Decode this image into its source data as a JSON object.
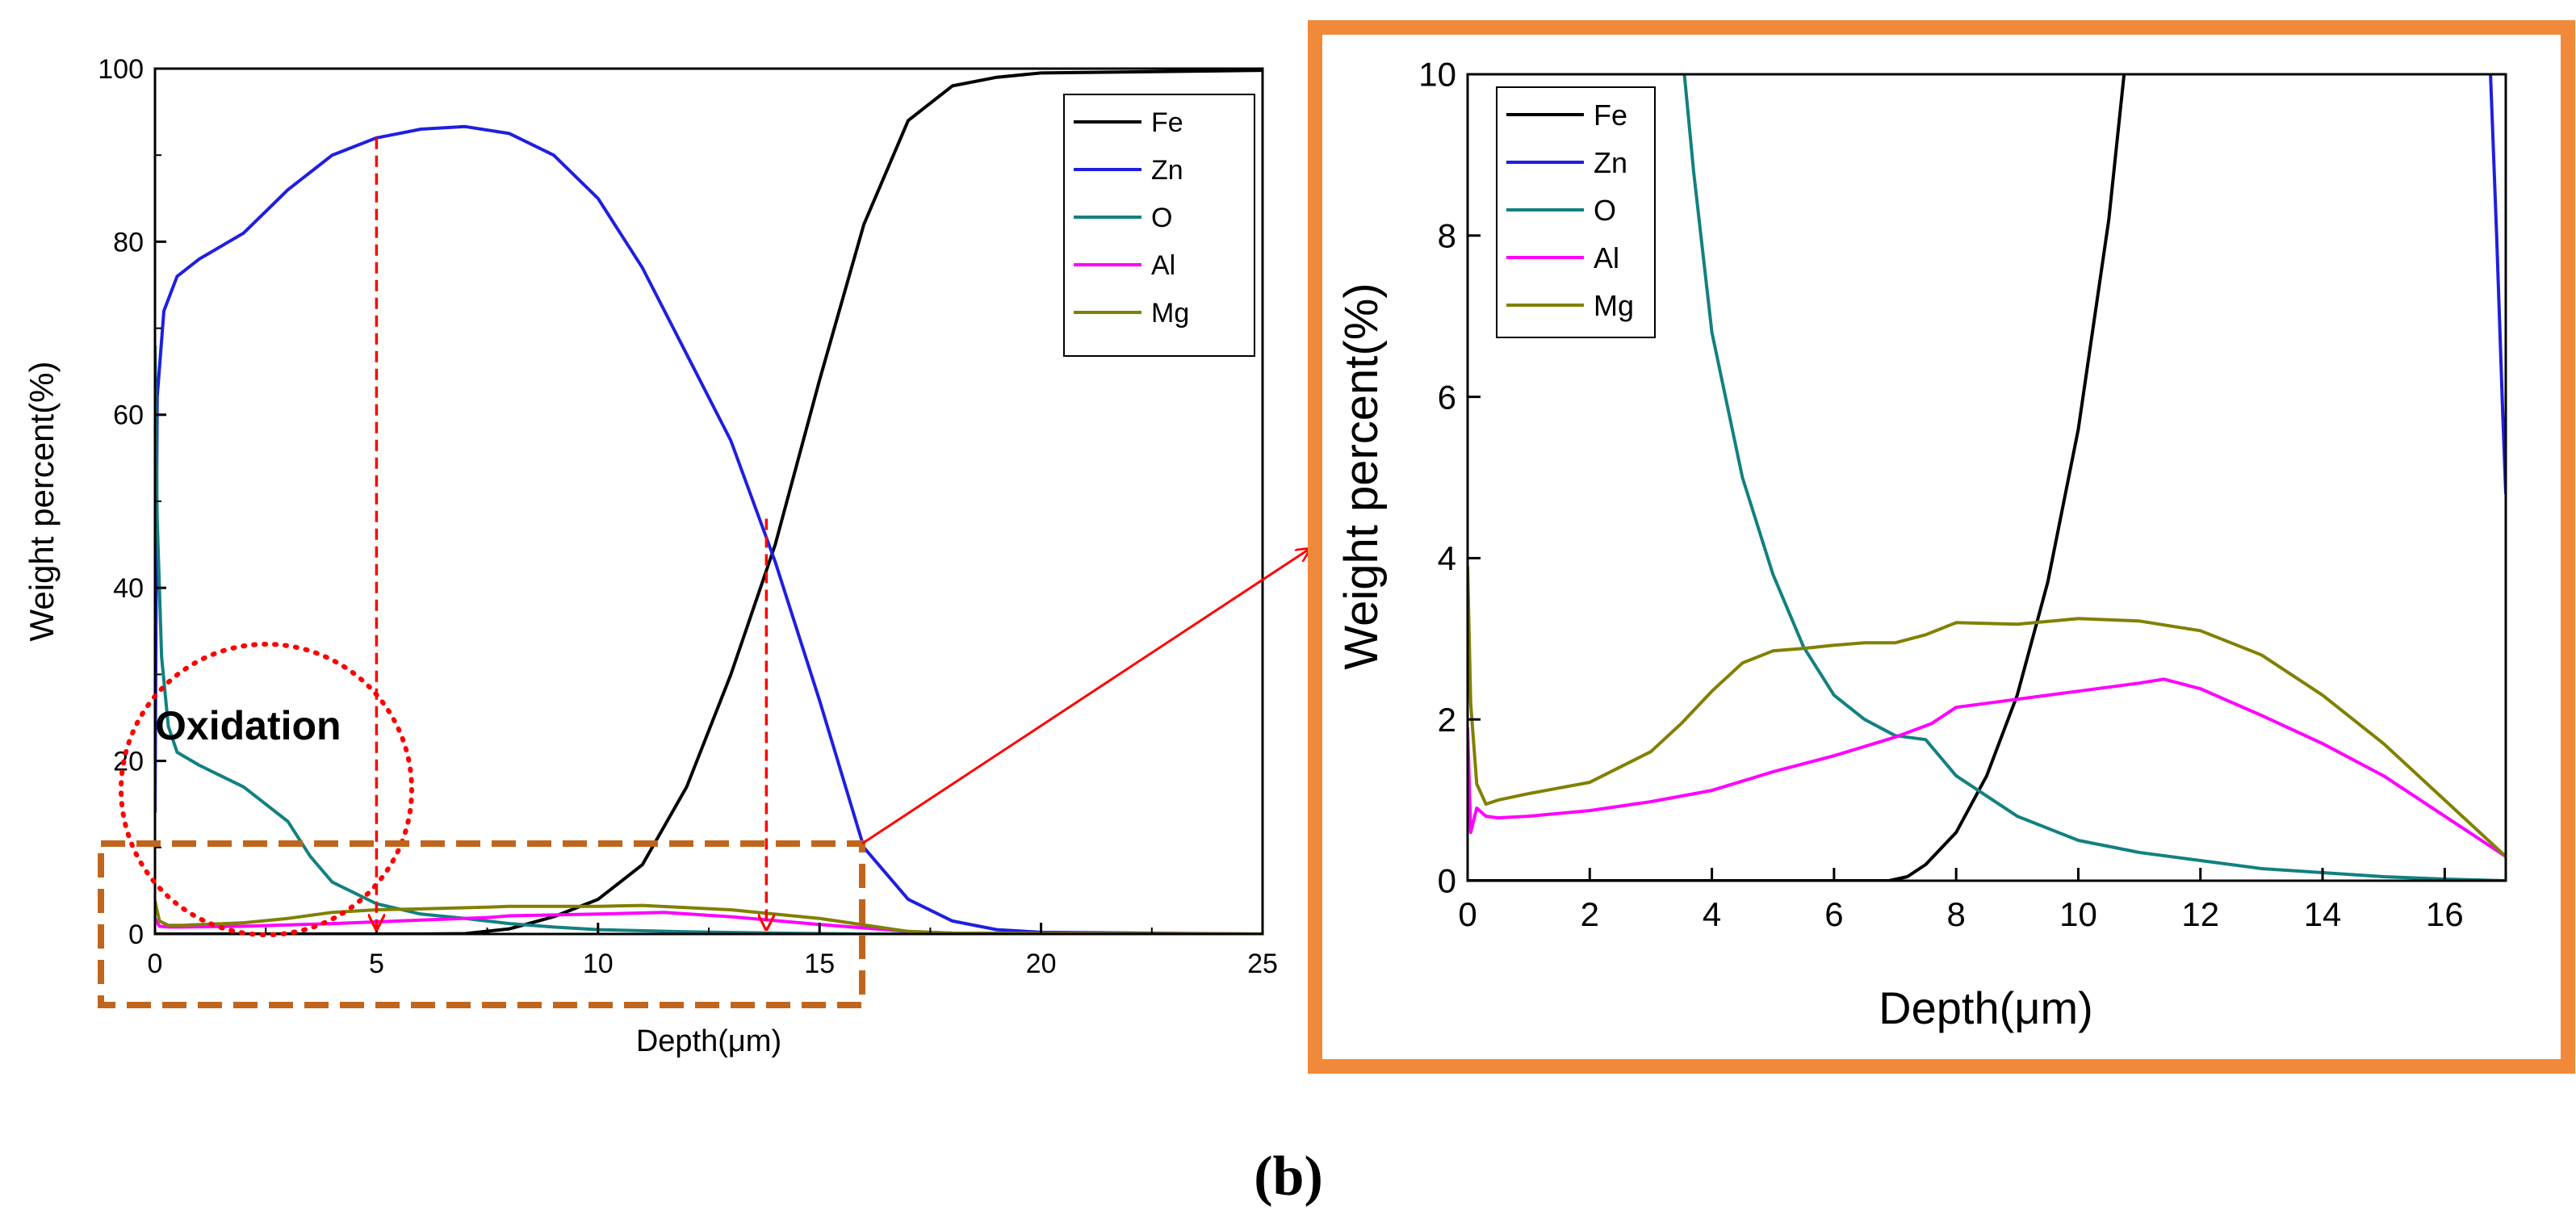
{
  "figure_label": "(b)",
  "annotation": {
    "oxidation_label": "Oxidation"
  },
  "series_colors": {
    "Fe": "#000000",
    "Zn": "#1f1fe0",
    "O": "#128080",
    "Al": "#ff00ff",
    "Mg": "#808000"
  },
  "highlight_colors": {
    "inset_frame": "#f08a3a",
    "zoom_box": "#c0651e",
    "markers": "#ff0000"
  },
  "chart_data": [
    {
      "id": "main",
      "type": "line",
      "title": "",
      "xlabel": "Depth(μm)",
      "ylabel": "Weight percent(%)",
      "xlim": [
        0,
        25
      ],
      "ylim": [
        0,
        100
      ],
      "xticks": [
        0,
        5,
        10,
        15,
        20,
        25
      ],
      "yticks": [
        0,
        20,
        40,
        60,
        80,
        100
      ],
      "legend": [
        "Fe",
        "Zn",
        "O",
        "Al",
        "Mg"
      ],
      "legend_position": "top-right",
      "markers_at_depth": [
        5,
        13.8
      ],
      "series": [
        {
          "name": "Fe",
          "x": [
            0,
            6,
            7,
            8,
            9,
            10,
            11,
            12,
            13,
            14,
            15,
            16,
            17,
            18,
            19,
            20,
            25
          ],
          "y": [
            0,
            0,
            0.05,
            0.6,
            2,
            4,
            8,
            17,
            30,
            45,
            64,
            82,
            94,
            98,
            99,
            99.5,
            99.8
          ]
        },
        {
          "name": "Zn",
          "x": [
            0,
            0.05,
            0.2,
            0.5,
            1,
            2,
            3,
            4,
            5,
            6,
            7,
            8,
            9,
            10,
            11,
            12,
            13,
            14,
            15,
            16,
            17,
            18,
            19,
            20,
            25
          ],
          "y": [
            14,
            62,
            72,
            76,
            78,
            81,
            86,
            90,
            92,
            93,
            93.3,
            92.5,
            90,
            85,
            77,
            67,
            57,
            43,
            27,
            10,
            4,
            1.5,
            0.5,
            0.2,
            0
          ]
        },
        {
          "name": "O",
          "x": [
            0,
            0.05,
            0.15,
            0.3,
            0.5,
            1,
            2,
            3,
            3.5,
            4,
            5,
            6,
            7,
            8,
            9,
            10,
            12,
            14,
            16,
            25
          ],
          "y": [
            68,
            48,
            32,
            24,
            21,
            19.5,
            17,
            13,
            9,
            6,
            3.5,
            2.3,
            1.8,
            1.2,
            0.8,
            0.5,
            0.25,
            0.1,
            0,
            0
          ]
        },
        {
          "name": "Al",
          "x": [
            0,
            0.1,
            0.3,
            0.6,
            2,
            4,
            6,
            7.5,
            8,
            10,
            11.5,
            13,
            15,
            17,
            18,
            25
          ],
          "y": [
            1.8,
            0.9,
            0.8,
            0.8,
            0.9,
            1.2,
            1.6,
            1.9,
            2.1,
            2.3,
            2.5,
            2.0,
            1.1,
            0.3,
            0.1,
            0
          ]
        },
        {
          "name": "Mg",
          "x": [
            0,
            0.1,
            0.3,
            0.6,
            2,
            3,
            4,
            5,
            6,
            7.5,
            8,
            10,
            11,
            13,
            15,
            17,
            18,
            25
          ],
          "y": [
            3.8,
            1.5,
            1.0,
            1.0,
            1.3,
            1.8,
            2.5,
            2.8,
            2.9,
            3.1,
            3.2,
            3.2,
            3.3,
            2.8,
            1.8,
            0.3,
            0.1,
            0
          ]
        }
      ]
    },
    {
      "id": "inset",
      "type": "line",
      "title": "",
      "xlabel": "Depth(μm)",
      "ylabel": "Weight percent(%)",
      "xlim": [
        0,
        17
      ],
      "ylim": [
        0,
        10
      ],
      "xticks": [
        0,
        2,
        4,
        6,
        8,
        10,
        12,
        14,
        16
      ],
      "yticks": [
        0,
        2,
        4,
        6,
        8,
        10
      ],
      "legend": [
        "Fe",
        "Zn",
        "O",
        "Al",
        "Mg"
      ],
      "legend_position": "top-left",
      "series": [
        {
          "name": "Fe",
          "x": [
            0,
            6.9,
            7.2,
            7.5,
            8,
            8.5,
            9,
            9.5,
            10,
            10.5,
            10.75
          ],
          "y": [
            0,
            0,
            0.05,
            0.2,
            0.6,
            1.3,
            2.3,
            3.7,
            5.6,
            8.2,
            10
          ]
        },
        {
          "name": "Zn",
          "x": [
            16.75,
            16.85,
            16.95,
            17
          ],
          "y": [
            10,
            8,
            5.8,
            4.8
          ]
        },
        {
          "name": "O",
          "x": [
            3.55,
            3.7,
            4,
            4.5,
            5,
            5.5,
            6,
            6.5,
            7,
            7.5,
            8,
            9,
            10,
            11,
            12,
            13,
            14,
            15,
            16,
            17
          ],
          "y": [
            10,
            8.8,
            6.8,
            5.0,
            3.8,
            2.9,
            2.3,
            2.0,
            1.8,
            1.75,
            1.3,
            0.8,
            0.5,
            0.35,
            0.25,
            0.15,
            0.1,
            0.05,
            0.02,
            0
          ]
        },
        {
          "name": "Al",
          "x": [
            0,
            0.05,
            0.15,
            0.3,
            0.5,
            1,
            2,
            3,
            4,
            5,
            6,
            7,
            7.6,
            8,
            9,
            10,
            11,
            11.4,
            12,
            13,
            14,
            15,
            16,
            17
          ],
          "y": [
            1.9,
            0.6,
            0.9,
            0.8,
            0.78,
            0.8,
            0.87,
            0.98,
            1.12,
            1.35,
            1.55,
            1.78,
            1.95,
            2.15,
            2.25,
            2.35,
            2.45,
            2.5,
            2.38,
            2.05,
            1.7,
            1.3,
            0.8,
            0.3
          ]
        },
        {
          "name": "Mg",
          "x": [
            0,
            0.05,
            0.15,
            0.3,
            0.5,
            1,
            2,
            3,
            3.5,
            4,
            4.5,
            5,
            5.5,
            6,
            6.5,
            7,
            7.5,
            8,
            9,
            10,
            11,
            12,
            13,
            14,
            15,
            16,
            17
          ],
          "y": [
            3.9,
            2.2,
            1.2,
            0.95,
            1.0,
            1.08,
            1.22,
            1.6,
            1.95,
            2.35,
            2.7,
            2.85,
            2.88,
            2.92,
            2.95,
            2.95,
            3.05,
            3.2,
            3.18,
            3.25,
            3.22,
            3.1,
            2.8,
            2.3,
            1.7,
            1.0,
            0.3
          ]
        }
      ]
    }
  ]
}
